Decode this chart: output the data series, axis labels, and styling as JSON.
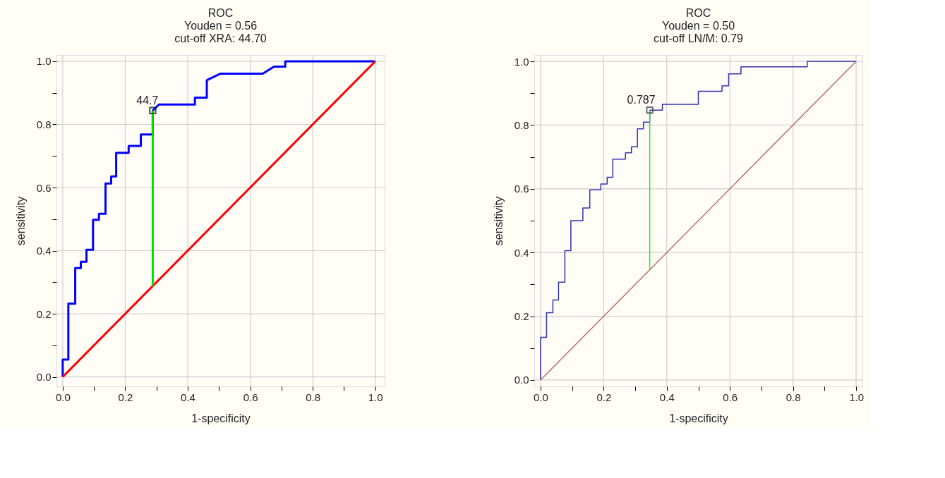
{
  "chart_data": [
    {
      "type": "line",
      "title": "ROC",
      "subtitle": "Youden = 0.56\ncut-off XRA: 44.70",
      "xlabel": "1-specificity",
      "ylabel": "sensitivity",
      "xlim": [
        -0.02,
        1.03
      ],
      "ylim": [
        -0.03,
        1.02
      ],
      "xticks": [
        {
          "value": 0,
          "label": "0.0"
        },
        {
          "value": 0.1,
          "label": null
        },
        {
          "value": 0.2,
          "label": "0.2"
        },
        {
          "value": 0.3,
          "label": null
        },
        {
          "value": 0.4,
          "label": "0.4"
        },
        {
          "value": 0.5,
          "label": null
        },
        {
          "value": 0.6,
          "label": "0.6"
        },
        {
          "value": 0.7,
          "label": null
        },
        {
          "value": 0.8,
          "label": "0.8"
        },
        {
          "value": 0.9,
          "label": null
        },
        {
          "value": 1,
          "label": "1.0"
        }
      ],
      "yticks": [
        {
          "value": 0,
          "label": "0.0"
        },
        {
          "value": 0.1,
          "label": null
        },
        {
          "value": 0.2,
          "label": "0.2"
        },
        {
          "value": 0.3,
          "label": null
        },
        {
          "value": 0.4,
          "label": "0.4"
        },
        {
          "value": 0.5,
          "label": null
        },
        {
          "value": 0.6,
          "label": "0.6"
        },
        {
          "value": 0.7,
          "label": null
        },
        {
          "value": 0.8,
          "label": "0.8"
        },
        {
          "value": 0.9,
          "label": null
        },
        {
          "value": 1,
          "label": "1.0"
        }
      ],
      "grid": true,
      "marker": "none",
      "line_style": "solid",
      "series": [
        {
          "type": "line",
          "color": "#0000ff",
          "x": [
            0,
            0,
            0.018,
            0.018,
            0.04,
            0.04,
            0.058,
            0.058,
            0.076,
            0.076,
            0.097,
            0.097,
            0.116,
            0.116,
            0.137,
            0.137,
            0.155,
            0.155,
            0.171,
            0.171,
            0.211,
            0.211,
            0.25,
            0.25,
            0.288,
            0.288,
            0.308,
            0.423,
            0.423,
            0.461,
            0.461,
            0.478,
            0.505,
            0.64,
            0.676,
            0.712,
            0.712,
            1.0
          ],
          "values": [
            0,
            0.055,
            0.055,
            0.232,
            0.232,
            0.345,
            0.345,
            0.365,
            0.365,
            0.403,
            0.403,
            0.498,
            0.498,
            0.517,
            0.517,
            0.613,
            0.613,
            0.635,
            0.635,
            0.71,
            0.71,
            0.732,
            0.732,
            0.768,
            0.768,
            0.844,
            0.863,
            0.863,
            0.885,
            0.885,
            0.94,
            0.948,
            0.961,
            0.961,
            0.983,
            0.983,
            1.0,
            1.0
          ]
        },
        {
          "type": "line",
          "color": "#ff0000",
          "x": [
            0,
            1
          ],
          "values": [
            0,
            1
          ]
        },
        {
          "type": "line",
          "color": "#00dd00",
          "x": [
            0.288,
            0.288
          ],
          "values": [
            0.288,
            0.844
          ]
        },
        {
          "type": "scatter",
          "marker": "square",
          "color": "#000000",
          "x": [
            0.288
          ],
          "values": [
            0.844
          ]
        }
      ],
      "annotations": [
        {
          "text": "44.7",
          "x": 0.288,
          "y": 0.844
        }
      ]
    },
    {
      "type": "line",
      "title": "ROC",
      "subtitle": "Youden = 0.50\ncut-off LN/M: 0.79",
      "xlabel": "1-specificity",
      "ylabel": "sensitivity",
      "xlim": [
        -0.02,
        1.02
      ],
      "ylim": [
        -0.02,
        1.02
      ],
      "xticks": [
        {
          "value": 0,
          "label": "0.0"
        },
        {
          "value": 0.1,
          "label": null
        },
        {
          "value": 0.2,
          "label": "0.2"
        },
        {
          "value": 0.3,
          "label": null
        },
        {
          "value": 0.4,
          "label": "0.4"
        },
        {
          "value": 0.5,
          "label": null
        },
        {
          "value": 0.6,
          "label": "0.6"
        },
        {
          "value": 0.7,
          "label": null
        },
        {
          "value": 0.8,
          "label": "0.8"
        },
        {
          "value": 0.9,
          "label": null
        },
        {
          "value": 1,
          "label": "1.0"
        }
      ],
      "yticks": [
        {
          "value": 0,
          "label": "0.0"
        },
        {
          "value": 0.1,
          "label": null
        },
        {
          "value": 0.2,
          "label": "0.2"
        },
        {
          "value": 0.3,
          "label": null
        },
        {
          "value": 0.4,
          "label": "0.4"
        },
        {
          "value": 0.5,
          "label": null
        },
        {
          "value": 0.6,
          "label": "0.6"
        },
        {
          "value": 0.7,
          "label": null
        },
        {
          "value": 0.8,
          "label": "0.8"
        },
        {
          "value": 0.9,
          "label": null
        },
        {
          "value": 1,
          "label": "1.0"
        }
      ],
      "grid": true,
      "marker": "none",
      "line_style": "solid",
      "series": [
        {
          "type": "line",
          "color": "#3333b3",
          "x": [
            0,
            0,
            0.019,
            0.019,
            0.039,
            0.039,
            0.057,
            0.057,
            0.077,
            0.077,
            0.096,
            0.096,
            0.134,
            0.134,
            0.156,
            0.156,
            0.191,
            0.191,
            0.211,
            0.211,
            0.229,
            0.229,
            0.269,
            0.269,
            0.288,
            0.288,
            0.307,
            0.307,
            0.326,
            0.326,
            0.346,
            0.346,
            0.386,
            0.386,
            0.5,
            0.5,
            0.575,
            0.575,
            0.596,
            0.596,
            0.635,
            0.635,
            0.845,
            0.845,
            1.0
          ],
          "values": [
            0,
            0.134,
            0.134,
            0.211,
            0.211,
            0.251,
            0.251,
            0.307,
            0.307,
            0.406,
            0.406,
            0.5,
            0.5,
            0.54,
            0.54,
            0.597,
            0.597,
            0.615,
            0.615,
            0.636,
            0.636,
            0.693,
            0.693,
            0.713,
            0.713,
            0.732,
            0.732,
            0.788,
            0.788,
            0.809,
            0.809,
            0.847,
            0.847,
            0.865,
            0.865,
            0.906,
            0.906,
            0.923,
            0.923,
            0.961,
            0.961,
            0.983,
            0.983,
            1.0,
            1.0
          ]
        },
        {
          "type": "line",
          "color": "#b86c6c",
          "x": [
            0,
            1
          ],
          "values": [
            0,
            1
          ]
        },
        {
          "type": "line",
          "color": "#33dd33",
          "x": [
            0.346,
            0.346
          ],
          "values": [
            0.346,
            0.847
          ]
        },
        {
          "type": "scatter",
          "marker": "square",
          "color": "#333333",
          "x": [
            0.346
          ],
          "values": [
            0.847
          ]
        }
      ],
      "annotations": [
        {
          "text": "0.787",
          "x": 0.346,
          "y": 0.847
        }
      ]
    }
  ]
}
